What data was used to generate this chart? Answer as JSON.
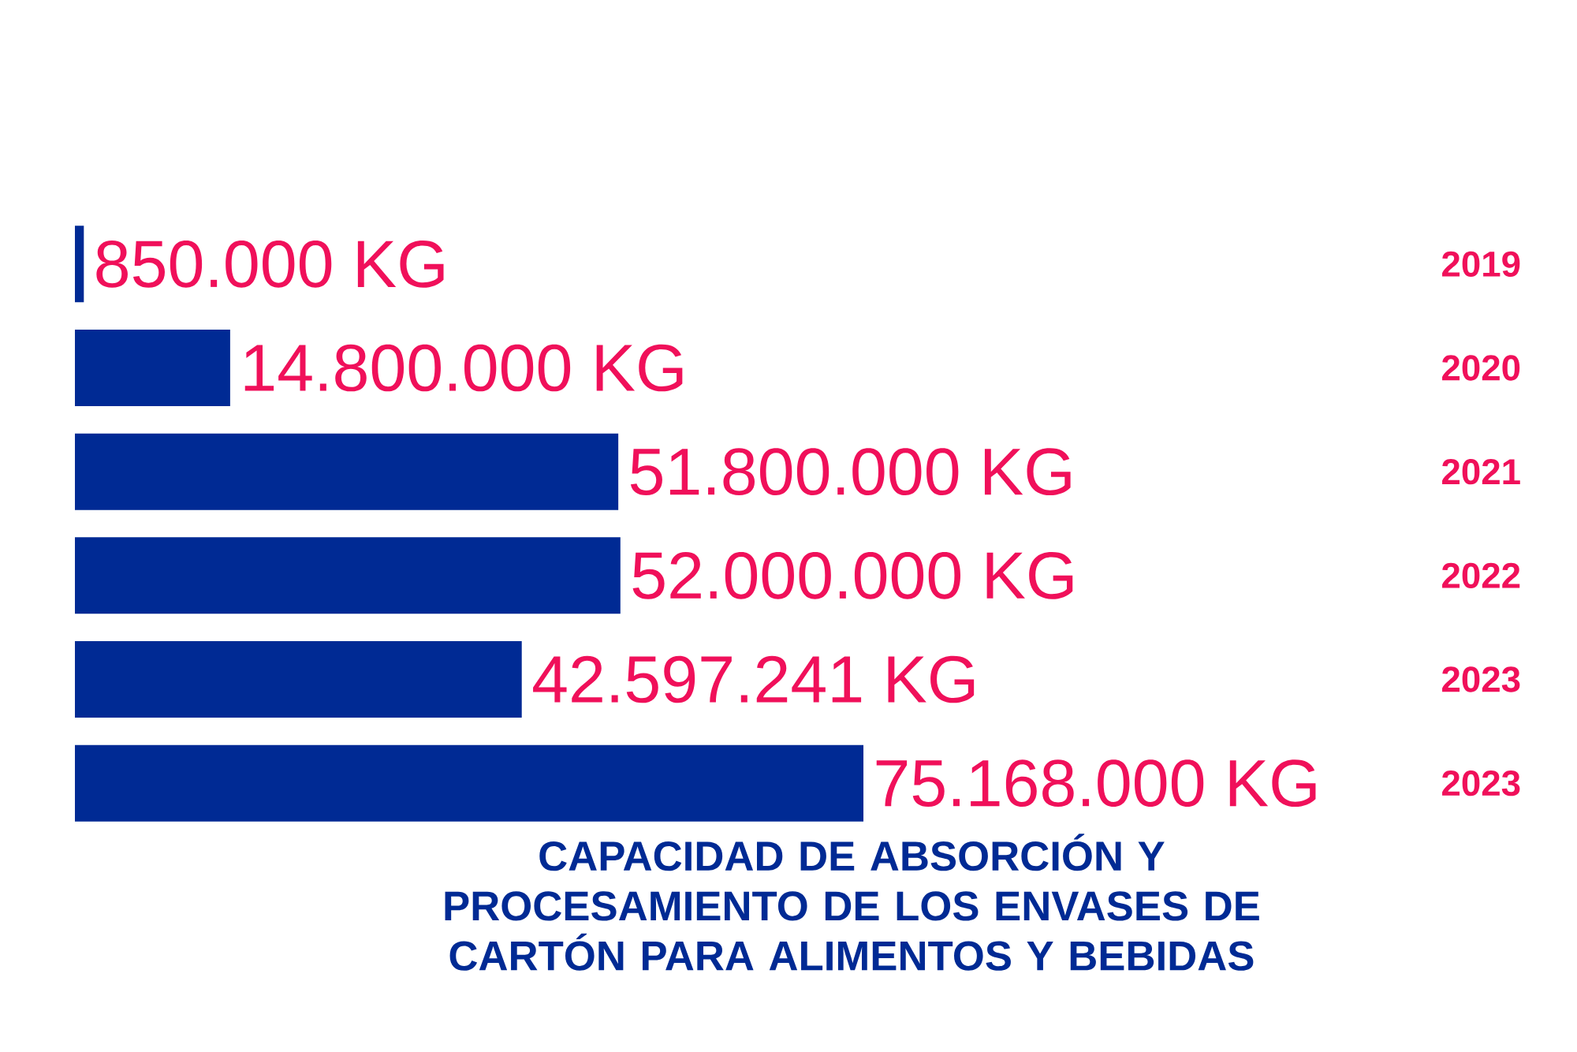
{
  "chart_data": {
    "type": "bar",
    "orientation": "horizontal",
    "title": "CAPACIDAD DE ABSORCIÓN Y PROCESAMIENTO DE LOS ENVASES DE CARTÓN PARA ALIMENTOS Y BEBIDAS",
    "categories": [
      "2019",
      "2020",
      "2021",
      "2022",
      "2023",
      "2023"
    ],
    "values": [
      850000,
      14800000,
      51800000,
      52000000,
      42597241,
      75168000
    ],
    "value_labels": [
      "850.000 KG",
      "14.800.000 KG",
      "51.800.000 KG",
      "52.000.000 KG",
      "42.597.241 KG",
      "75.168.000 KG"
    ],
    "color": "#002a94"
  }
}
